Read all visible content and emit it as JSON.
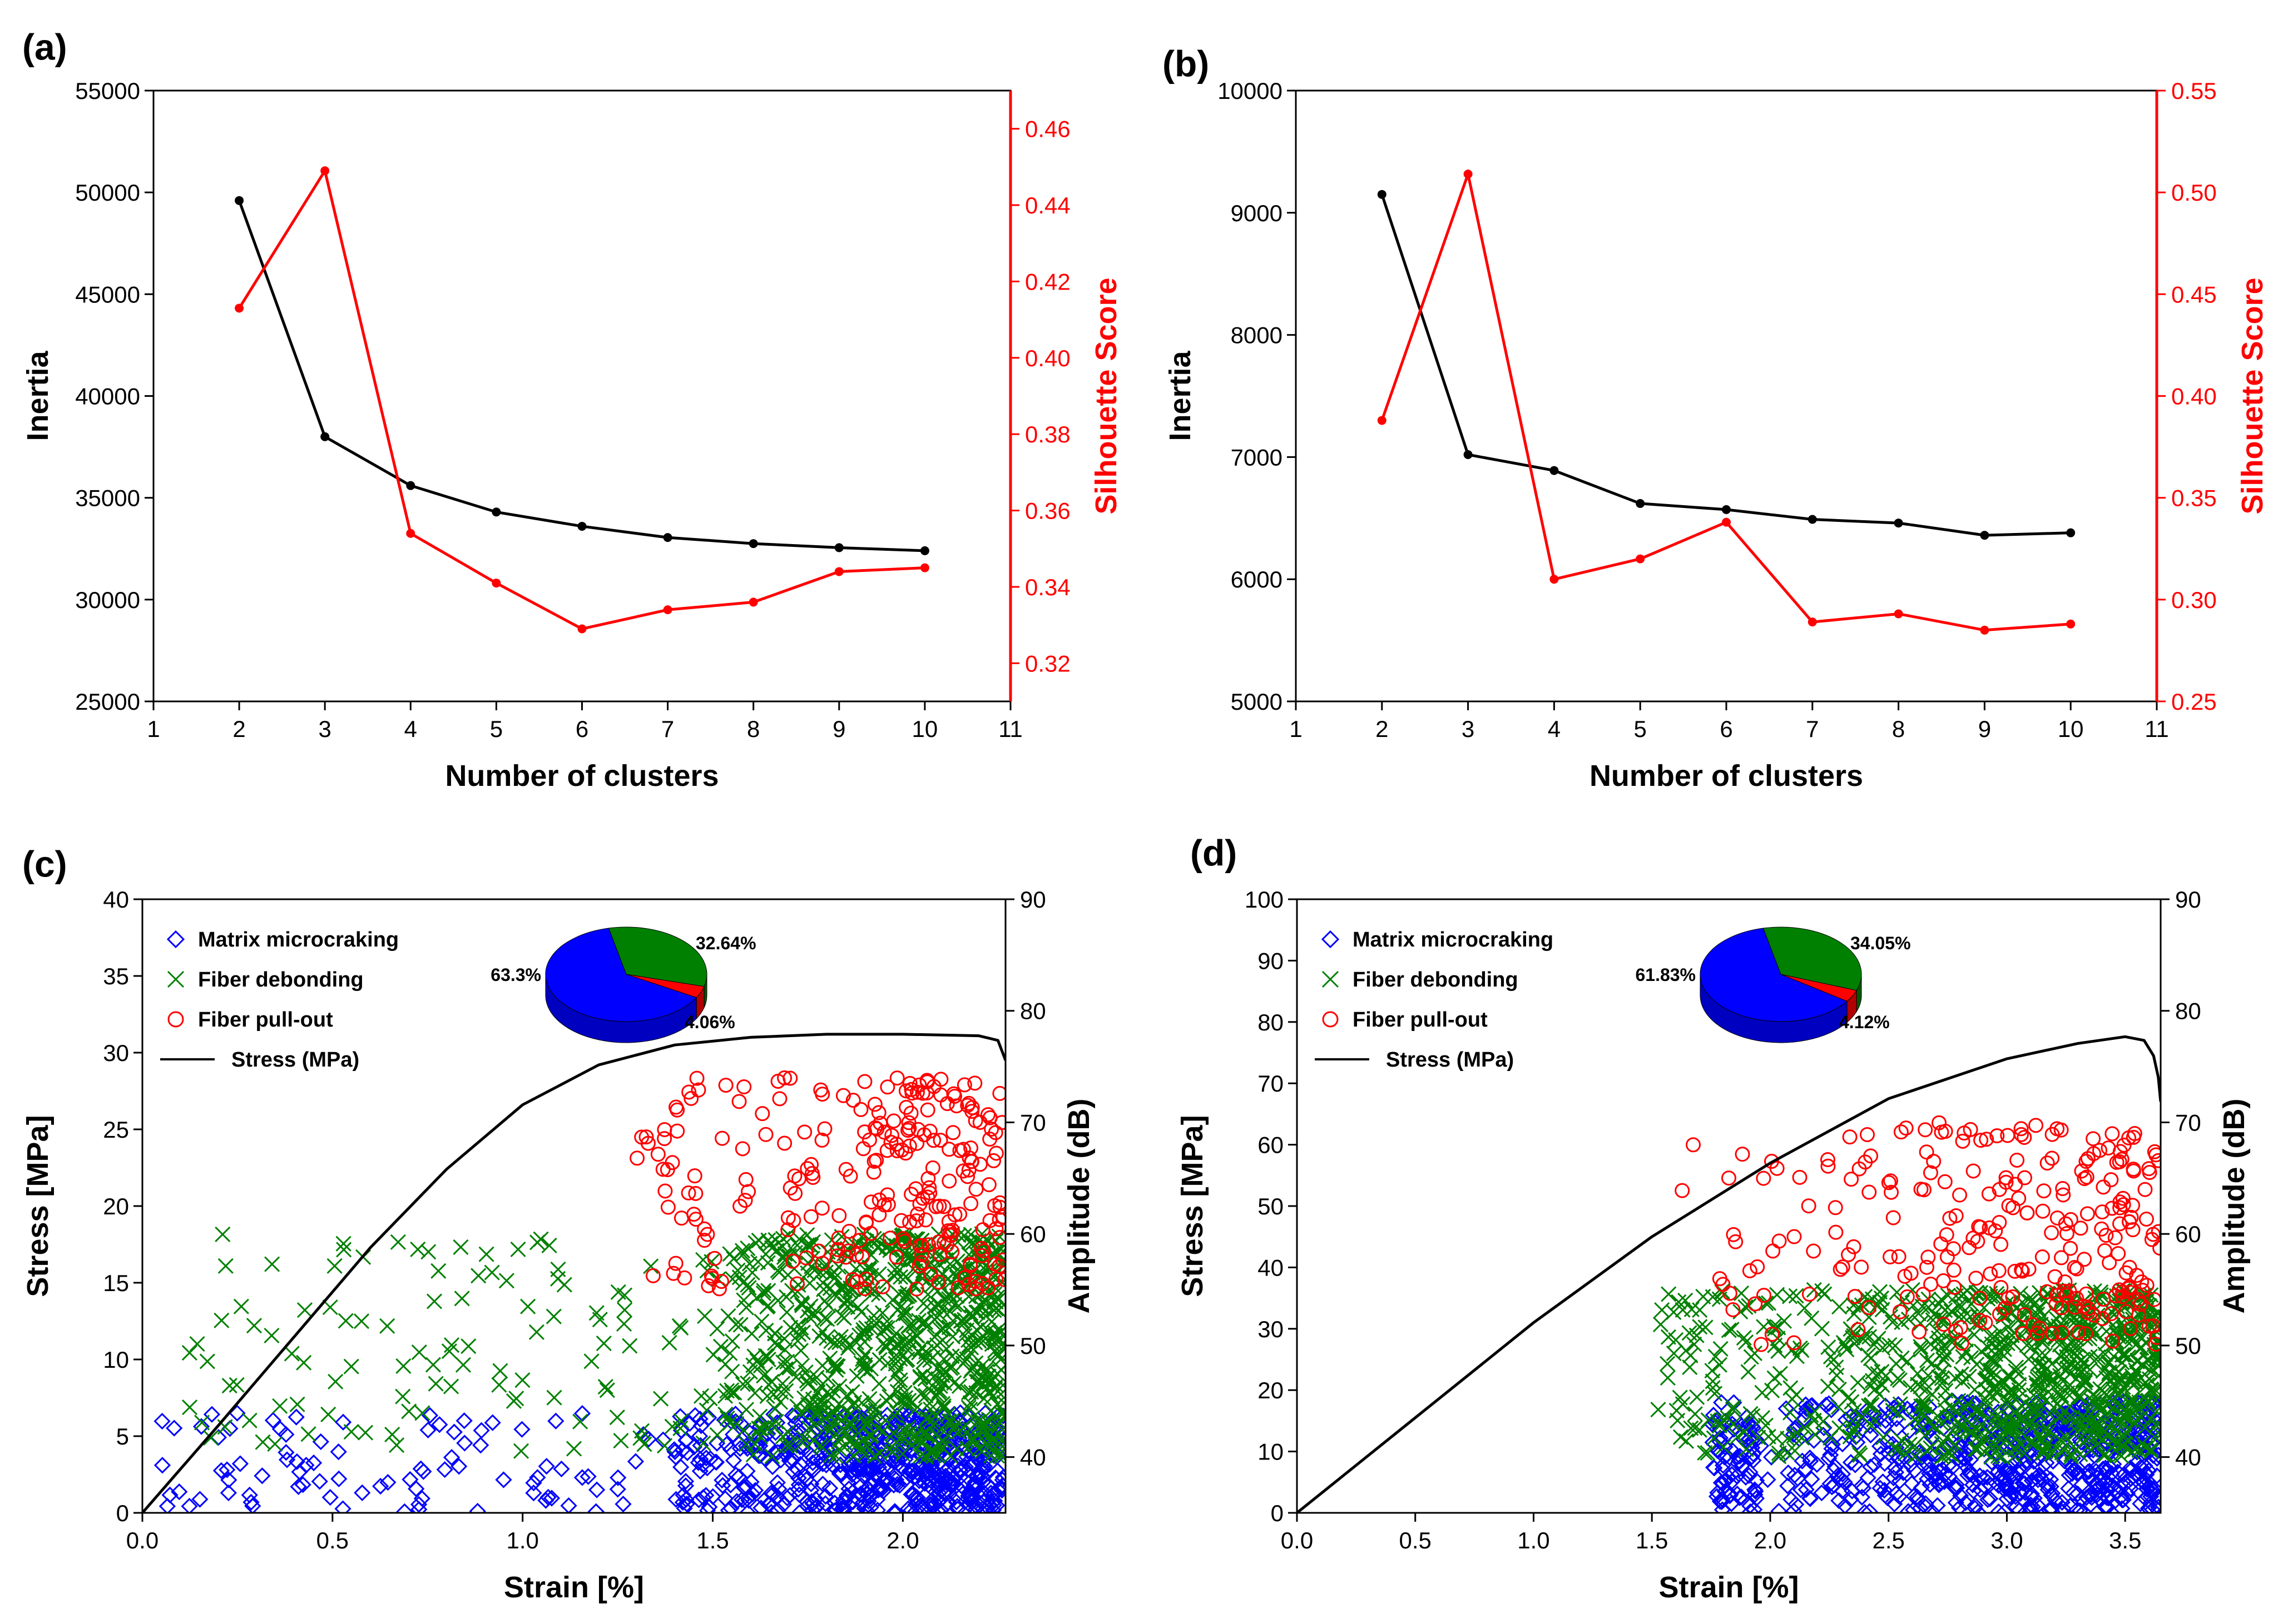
{
  "colors": {
    "black": "#000000",
    "red": "#ff0000",
    "blue": "#0000ff",
    "green": "#008000"
  },
  "chart_data": [
    {
      "panel": "(a)",
      "type": "line",
      "xlabel": "Number of clusters",
      "ylabel": "Inertia",
      "y2label": "Silhouette Score",
      "xlim": [
        1,
        11
      ],
      "ylim": [
        25000,
        55000
      ],
      "y2lim": [
        0.31,
        0.47
      ],
      "xticks": [
        "1",
        "2",
        "3",
        "4",
        "5",
        "6",
        "7",
        "8",
        "9",
        "10",
        "11"
      ],
      "yticks": [
        "25000",
        "30000",
        "35000",
        "40000",
        "45000",
        "50000",
        "55000"
      ],
      "y2ticks": [
        "0.32",
        "0.34",
        "0.36",
        "0.38",
        "0.40",
        "0.42",
        "0.44",
        "0.46"
      ],
      "x": [
        2,
        3,
        4,
        5,
        6,
        7,
        8,
        9,
        10
      ],
      "series": [
        {
          "name": "Inertia",
          "axis": "left",
          "color": "#000000",
          "values": [
            49600,
            38000,
            35600,
            34300,
            33600,
            33050,
            32750,
            32550,
            32400
          ]
        },
        {
          "name": "Silhouette Score",
          "axis": "right",
          "color": "#ff0000",
          "values": [
            0.413,
            0.449,
            0.354,
            0.341,
            0.329,
            0.334,
            0.336,
            0.344,
            0.345
          ]
        }
      ]
    },
    {
      "panel": "(b)",
      "type": "line",
      "xlabel": "Number of clusters",
      "ylabel": "Inertia",
      "y2label": "Silhouette Score",
      "xlim": [
        1,
        11
      ],
      "ylim": [
        5000,
        10000
      ],
      "y2lim": [
        0.25,
        0.55
      ],
      "xticks": [
        "1",
        "2",
        "3",
        "4",
        "5",
        "6",
        "7",
        "8",
        "9",
        "10",
        "11"
      ],
      "yticks": [
        "5000",
        "6000",
        "7000",
        "8000",
        "9000",
        "10000"
      ],
      "y2ticks": [
        "0.25",
        "0.30",
        "0.35",
        "0.40",
        "0.45",
        "0.50",
        "0.55"
      ],
      "x": [
        2,
        3,
        4,
        5,
        6,
        7,
        8,
        9,
        10
      ],
      "series": [
        {
          "name": "Inertia",
          "axis": "left",
          "color": "#000000",
          "values": [
            9150,
            7020,
            6890,
            6620,
            6570,
            6490,
            6460,
            6360,
            6380
          ]
        },
        {
          "name": "Silhouette Score",
          "axis": "right",
          "color": "#ff0000",
          "values": [
            0.388,
            0.509,
            0.31,
            0.32,
            0.338,
            0.289,
            0.293,
            0.285,
            0.288
          ]
        }
      ]
    },
    {
      "panel": "(c)",
      "type": "scatter",
      "xlabel": "Strain [%]",
      "ylabel": "Stress [MPa]",
      "y2label": "Amplitude (dB)",
      "xlim": [
        0,
        2.27
      ],
      "ylim": [
        0,
        40
      ],
      "y2lim": [
        35,
        90
      ],
      "xticks": [
        "0.0",
        "0.5",
        "1.0",
        "1.5",
        "2.0"
      ],
      "yticks": [
        "0",
        "5",
        "10",
        "15",
        "20",
        "25",
        "30",
        "35",
        "40"
      ],
      "y2ticks": [
        "40",
        "50",
        "60",
        "70",
        "80",
        "90"
      ],
      "legend": [
        "Matrix microcraking",
        "Fiber debonding",
        "Fiber pull-out",
        "Stress (MPa)"
      ],
      "stress_curve": {
        "strain": [
          0,
          0.2,
          0.4,
          0.6,
          0.8,
          1.0,
          1.2,
          1.4,
          1.6,
          1.8,
          2.0,
          2.2,
          2.25,
          2.27
        ],
        "stress": [
          0,
          5.7,
          11.5,
          17.3,
          22.4,
          26.6,
          29.2,
          30.5,
          31.0,
          31.2,
          31.2,
          31.1,
          30.8,
          29.5
        ]
      },
      "clusters": [
        {
          "name": "Matrix microcraking",
          "marker": "diamond",
          "color": "#0000ff",
          "strain_range": [
            0.05,
            2.27
          ],
          "amplitude_range": [
            35,
            44
          ],
          "dense_from": 1.35
        },
        {
          "name": "Fiber debonding",
          "marker": "x",
          "color": "#008000",
          "strain_range": [
            0.12,
            2.27
          ],
          "amplitude_range": [
            40,
            60
          ],
          "dense_from": 1.45
        },
        {
          "name": "Fiber pull-out",
          "marker": "circle",
          "color": "#ff0000",
          "strain_range": [
            1.3,
            2.27
          ],
          "amplitude_range": [
            55,
            74
          ],
          "dense_from": 1.6
        }
      ],
      "pie": {
        "labels": [
          "63.3%",
          "32.64%",
          "4.06%"
        ],
        "values": [
          63.3,
          32.64,
          4.06
        ],
        "colors": [
          "#0000ff",
          "#008000",
          "#ff0000"
        ]
      }
    },
    {
      "panel": "(d)",
      "type": "scatter",
      "xlabel": "Strain [%]",
      "ylabel": "Stress [MPa]",
      "y2label": "Amplitude (dB)",
      "xlim": [
        0,
        3.65
      ],
      "ylim": [
        0,
        100
      ],
      "y2lim": [
        35,
        90
      ],
      "xticks": [
        "0.0",
        "0.5",
        "1.0",
        "1.5",
        "2.0",
        "2.5",
        "3.0",
        "3.5"
      ],
      "yticks": [
        "0",
        "10",
        "20",
        "30",
        "40",
        "50",
        "60",
        "70",
        "80",
        "90",
        "100"
      ],
      "y2ticks": [
        "40",
        "50",
        "60",
        "70",
        "80",
        "90"
      ],
      "legend": [
        "Matrix microcraking",
        "Fiber debonding",
        "Fiber pull-out",
        "Stress (MPa)"
      ],
      "stress_curve": {
        "strain": [
          0,
          0.5,
          1.0,
          1.5,
          2.0,
          2.5,
          3.0,
          3.3,
          3.5,
          3.58,
          3.62,
          3.64,
          3.65
        ],
        "stress": [
          0,
          15.5,
          31,
          45,
          57,
          67.5,
          74,
          76.5,
          77.6,
          77,
          74.5,
          71,
          67
        ]
      },
      "clusters": [
        {
          "name": "Matrix microcraking",
          "marker": "diamond",
          "color": "#0000ff",
          "strain_range": [
            1.75,
            3.65
          ],
          "amplitude_range": [
            35,
            45
          ],
          "dense_from": 1.95
        },
        {
          "name": "Fiber debonding",
          "marker": "x",
          "color": "#008000",
          "strain_range": [
            1.52,
            3.65
          ],
          "amplitude_range": [
            40,
            55
          ],
          "dense_from": 2.2
        },
        {
          "name": "Fiber pull-out",
          "marker": "circle",
          "color": "#ff0000",
          "strain_range": [
            1.6,
            3.65
          ],
          "amplitude_range": [
            50,
            70
          ],
          "dense_from": 2.2
        }
      ],
      "pie": {
        "labels": [
          "61.83%",
          "34.05%",
          "4.12%"
        ],
        "values": [
          61.83,
          34.05,
          4.12
        ],
        "colors": [
          "#0000ff",
          "#008000",
          "#ff0000"
        ]
      }
    }
  ]
}
